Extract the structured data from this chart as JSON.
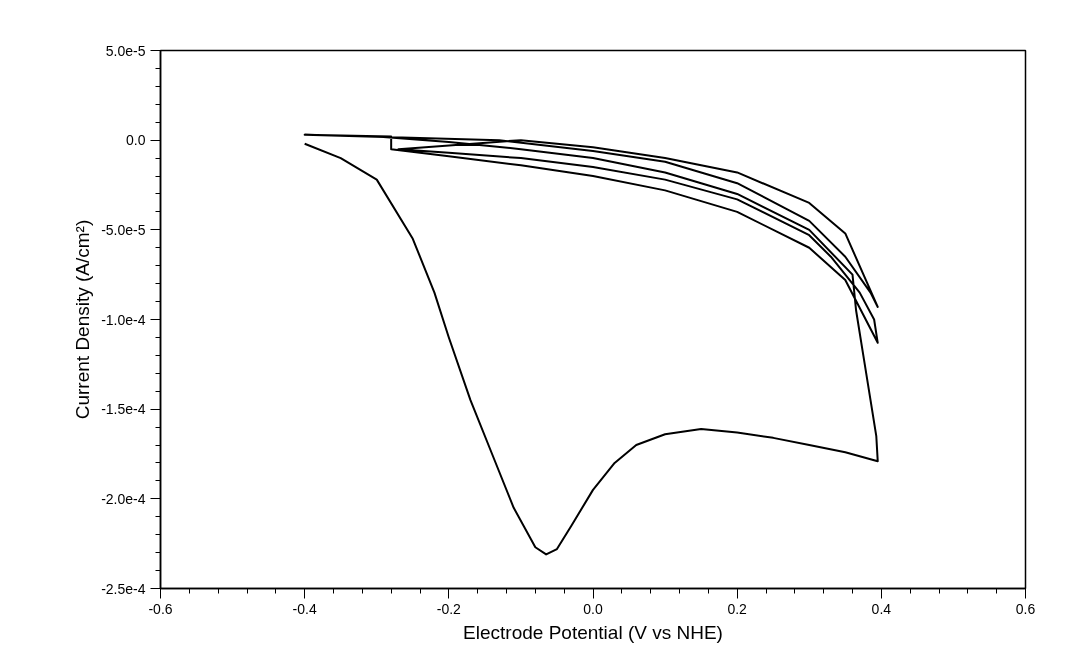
{
  "chart_data": {
    "type": "line",
    "xlabel": "Electrode Potential (V vs NHE)",
    "ylabel": "Current Density (A/cm²)",
    "xlim": [
      -0.6,
      0.6
    ],
    "ylim": [
      -0.00025,
      5e-05
    ],
    "xticks": [
      {
        "value": -0.6,
        "label": "-0.6"
      },
      {
        "value": -0.4,
        "label": "-0.4"
      },
      {
        "value": -0.2,
        "label": "-0.2"
      },
      {
        "value": 0.0,
        "label": "0.0"
      },
      {
        "value": 0.2,
        "label": "0.2"
      },
      {
        "value": 0.4,
        "label": "0.4"
      },
      {
        "value": 0.6,
        "label": "0.6"
      }
    ],
    "yticks": [
      {
        "value": 5e-05,
        "label": "5.0e-5"
      },
      {
        "value": 0.0,
        "label": "0.0"
      },
      {
        "value": -5e-05,
        "label": "-5.0e-5"
      },
      {
        "value": -0.0001,
        "label": "-1.0e-4"
      },
      {
        "value": -0.00015,
        "label": "-1.5e-4"
      },
      {
        "value": -0.0002,
        "label": "-2.0e-4"
      },
      {
        "value": -0.00025,
        "label": "-2.5e-4"
      }
    ],
    "grid": false,
    "marker": "none",
    "line_style": "solid",
    "series": [
      {
        "color": "#000000",
        "x": [
          -0.4,
          -0.35,
          -0.3,
          -0.25,
          -0.22,
          -0.2,
          -0.17,
          -0.14,
          -0.11,
          -0.08,
          -0.065,
          -0.05,
          -0.03,
          0.0,
          0.03,
          0.06,
          0.1,
          0.15,
          0.2,
          0.25,
          0.3,
          0.35,
          0.395,
          0.393,
          0.385,
          0.375,
          0.365,
          0.36,
          0.3,
          0.2,
          0.1,
          0.0,
          -0.1,
          -0.2,
          -0.3,
          -0.4,
          -0.28,
          -0.28,
          -0.2,
          -0.1,
          0.0,
          0.1,
          0.2,
          0.3,
          0.35,
          0.395,
          0.39,
          0.37,
          0.33,
          0.3,
          0.2,
          0.1,
          0.0,
          -0.1,
          -0.2,
          -0.27,
          -0.1,
          0.0,
          0.1,
          0.2,
          0.3,
          0.35,
          0.395,
          0.385,
          0.35,
          0.3,
          0.2,
          0.1,
          0.0,
          -0.13,
          -0.4
        ],
        "values": [
          -2e-06,
          -1e-05,
          -2.2e-05,
          -5.5e-05,
          -8.5e-05,
          -0.00011,
          -0.000145,
          -0.000175,
          -0.000205,
          -0.000227,
          -0.000231,
          -0.000228,
          -0.000215,
          -0.000195,
          -0.00018,
          -0.00017,
          -0.000164,
          -0.000161,
          -0.000163,
          -0.000166,
          -0.00017,
          -0.000174,
          -0.000179,
          -0.000165,
          -0.000145,
          -0.00012,
          -9.5e-05,
          -7.5e-05,
          -5e-05,
          -3e-05,
          -1.8e-05,
          -1e-05,
          -5e-06,
          -1e-06,
          2e-06,
          3e-06,
          2e-06,
          -5e-06,
          -9e-06,
          -1.4e-05,
          -2e-05,
          -2.8e-05,
          -4e-05,
          -6e-05,
          -7.8e-05,
          -0.000113,
          -0.0001,
          -8.5e-05,
          -6.5e-05,
          -5.3e-05,
          -3.3e-05,
          -2.2e-05,
          -1.5e-05,
          -1e-05,
          -7e-06,
          -5e-06,
          0.0,
          -4e-06,
          -1e-05,
          -1.8e-05,
          -3.5e-05,
          -5.2e-05,
          -9.3e-05,
          -8.5e-05,
          -6.5e-05,
          -4.5e-05,
          -2.4e-05,
          -1.2e-05,
          -6e-06,
          0.0,
          3e-06
        ]
      }
    ]
  }
}
